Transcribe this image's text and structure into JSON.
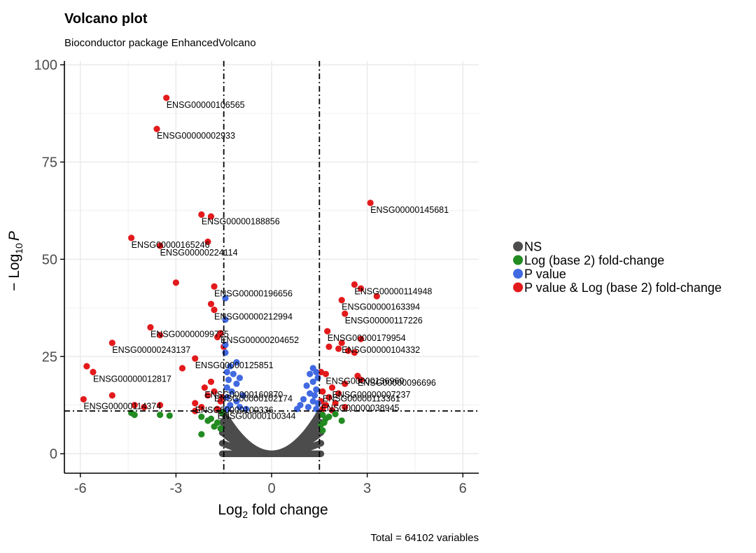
{
  "chart_data": {
    "type": "scatter",
    "title": "Volcano plot",
    "subtitle": "Bioconductor package EnhancedVolcano",
    "xlabel": {
      "base": "Log",
      "sub": "2",
      "rest": " fold change"
    },
    "ylabel": {
      "prefix": "− Log",
      "sub": "10",
      "var": "P"
    },
    "xlim": [
      -6.5,
      6.5
    ],
    "ylim": [
      -5,
      101
    ],
    "x_ticks": [
      -6,
      -3,
      0,
      3,
      6
    ],
    "y_ticks": [
      0,
      25,
      50,
      75,
      100
    ],
    "grid": true,
    "legend_position": "right",
    "fc_cutoff": 1.5,
    "p_cutoff_y": 11,
    "caption": "Total = 64102 variables",
    "colors": {
      "NS": "#4d4d4d",
      "FC": "#228b22",
      "P": "#4169e1",
      "FC_P": "#e31a1c",
      "grid": "#ebebeb",
      "axis": "#000000"
    },
    "legend": [
      {
        "key": "NS",
        "label": "NS"
      },
      {
        "key": "FC",
        "label": "Log (base 2) fold-change"
      },
      {
        "key": "P",
        "label": "P value"
      },
      {
        "key": "FC_P",
        "label": "P value & Log (base 2) fold-change"
      }
    ],
    "series": [
      {
        "key": "FC_P",
        "points": [
          {
            "x": -3.3,
            "y": 91.5
          },
          {
            "x": -3.6,
            "y": 83.5
          },
          {
            "x": -2.2,
            "y": 61.5
          },
          {
            "x": -1.9,
            "y": 61.0
          },
          {
            "x": -4.4,
            "y": 55.5
          },
          {
            "x": -3.5,
            "y": 53.5
          },
          {
            "x": -2.0,
            "y": 54.5
          },
          {
            "x": -3.0,
            "y": 44.0
          },
          {
            "x": -1.8,
            "y": 43.0
          },
          {
            "x": -1.9,
            "y": 38.5
          },
          {
            "x": -1.8,
            "y": 37.0
          },
          {
            "x": -1.6,
            "y": 31.0
          },
          {
            "x": -3.8,
            "y": 32.5
          },
          {
            "x": -3.5,
            "y": 30.5
          },
          {
            "x": -5.0,
            "y": 28.5
          },
          {
            "x": -1.5,
            "y": 27.5
          },
          {
            "x": -1.7,
            "y": 30.0
          },
          {
            "x": -2.4,
            "y": 24.5
          },
          {
            "x": -2.8,
            "y": 22.0
          },
          {
            "x": -5.8,
            "y": 22.5
          },
          {
            "x": -5.6,
            "y": 21.0
          },
          {
            "x": -5.0,
            "y": 15.0
          },
          {
            "x": -5.9,
            "y": 14.0
          },
          {
            "x": -4.3,
            "y": 12.5
          },
          {
            "x": -4.0,
            "y": 12.0
          },
          {
            "x": -3.5,
            "y": 12.5
          },
          {
            "x": -2.1,
            "y": 17.0
          },
          {
            "x": -1.9,
            "y": 18.5
          },
          {
            "x": -1.8,
            "y": 16.0
          },
          {
            "x": -2.0,
            "y": 15.0
          },
          {
            "x": -1.6,
            "y": 13.5
          },
          {
            "x": -2.4,
            "y": 13.0
          },
          {
            "x": -2.2,
            "y": 12.0
          },
          {
            "x": -1.7,
            "y": 11.5
          },
          {
            "x": -1.55,
            "y": 14.5
          },
          {
            "x": -2.4,
            "y": 11.0
          },
          {
            "x": 3.1,
            "y": 64.5
          },
          {
            "x": 2.6,
            "y": 43.5
          },
          {
            "x": 2.8,
            "y": 42.5
          },
          {
            "x": 3.3,
            "y": 40.5
          },
          {
            "x": 2.2,
            "y": 39.5
          },
          {
            "x": 2.3,
            "y": 36.0
          },
          {
            "x": 1.75,
            "y": 31.5
          },
          {
            "x": 2.8,
            "y": 29.5
          },
          {
            "x": 2.2,
            "y": 28.5
          },
          {
            "x": 1.8,
            "y": 27.5
          },
          {
            "x": 2.1,
            "y": 27.0
          },
          {
            "x": 2.4,
            "y": 26.5
          },
          {
            "x": 2.6,
            "y": 26.0
          },
          {
            "x": 1.55,
            "y": 21.0
          },
          {
            "x": 1.7,
            "y": 20.5
          },
          {
            "x": 2.7,
            "y": 20.0
          },
          {
            "x": 2.8,
            "y": 19.0
          },
          {
            "x": 2.3,
            "y": 18.0
          },
          {
            "x": 1.9,
            "y": 17.0
          },
          {
            "x": 1.6,
            "y": 16.0
          },
          {
            "x": 2.1,
            "y": 15.5
          },
          {
            "x": 1.8,
            "y": 14.5
          },
          {
            "x": 1.55,
            "y": 13.5
          },
          {
            "x": 2.0,
            "y": 13.0
          },
          {
            "x": 1.7,
            "y": 12.5
          },
          {
            "x": 2.3,
            "y": 12.0
          },
          {
            "x": 1.6,
            "y": 11.5
          },
          {
            "x": 1.9,
            "y": 11.2
          }
        ]
      },
      {
        "key": "P",
        "points": [
          {
            "x": -1.45,
            "y": 40.0
          },
          {
            "x": -1.45,
            "y": 34.5
          },
          {
            "x": -1.45,
            "y": 28.0
          },
          {
            "x": -1.45,
            "y": 26.0
          },
          {
            "x": -1.1,
            "y": 23.5
          },
          {
            "x": -1.3,
            "y": 22.5
          },
          {
            "x": -1.4,
            "y": 21.0
          },
          {
            "x": -1.2,
            "y": 20.5
          },
          {
            "x": -1.0,
            "y": 19.5
          },
          {
            "x": -1.35,
            "y": 19.0
          },
          {
            "x": -1.1,
            "y": 18.0
          },
          {
            "x": -1.4,
            "y": 17.0
          },
          {
            "x": -1.25,
            "y": 16.0
          },
          {
            "x": -0.9,
            "y": 15.0
          },
          {
            "x": -1.4,
            "y": 14.5
          },
          {
            "x": -1.1,
            "y": 13.5
          },
          {
            "x": -1.3,
            "y": 12.5
          },
          {
            "x": -1.0,
            "y": 12.0
          },
          {
            "x": -0.8,
            "y": 11.5
          },
          {
            "x": -1.4,
            "y": 11.5
          },
          {
            "x": 1.3,
            "y": 22.0
          },
          {
            "x": 1.4,
            "y": 21.0
          },
          {
            "x": 1.2,
            "y": 20.5
          },
          {
            "x": 1.45,
            "y": 19.5
          },
          {
            "x": 1.3,
            "y": 18.5
          },
          {
            "x": 1.1,
            "y": 17.5
          },
          {
            "x": 1.4,
            "y": 16.5
          },
          {
            "x": 1.2,
            "y": 15.5
          },
          {
            "x": 1.35,
            "y": 15.0
          },
          {
            "x": 1.0,
            "y": 14.0
          },
          {
            "x": 1.3,
            "y": 13.5
          },
          {
            "x": 1.45,
            "y": 13.0
          },
          {
            "x": 0.9,
            "y": 12.5
          },
          {
            "x": 1.15,
            "y": 12.0
          },
          {
            "x": 1.4,
            "y": 11.5
          },
          {
            "x": 0.8,
            "y": 11.5
          }
        ]
      },
      {
        "key": "FC",
        "points": [
          {
            "x": -4.3,
            "y": 10.0
          },
          {
            "x": -4.4,
            "y": 10.5
          },
          {
            "x": -3.5,
            "y": 10.0
          },
          {
            "x": -3.2,
            "y": 9.8
          },
          {
            "x": -2.2,
            "y": 9.5
          },
          {
            "x": -2.0,
            "y": 8.5
          },
          {
            "x": -2.2,
            "y": 5.0
          },
          {
            "x": -1.8,
            "y": 7.0
          },
          {
            "x": -1.6,
            "y": 6.5
          },
          {
            "x": -1.9,
            "y": 9.0
          },
          {
            "x": -1.55,
            "y": 10.5
          },
          {
            "x": -1.7,
            "y": 8.0
          },
          {
            "x": 1.6,
            "y": 10.0
          },
          {
            "x": 1.7,
            "y": 9.0
          },
          {
            "x": 1.55,
            "y": 7.5
          },
          {
            "x": 1.6,
            "y": 6.0
          },
          {
            "x": 2.2,
            "y": 8.5
          },
          {
            "x": 2.0,
            "y": 10.2
          },
          {
            "x": 1.8,
            "y": 9.5
          },
          {
            "x": 1.65,
            "y": 8.0
          }
        ]
      }
    ],
    "labels": [
      {
        "text": "ENSG00000106565",
        "x": -3.3,
        "y": 91.5
      },
      {
        "text": "ENSG00000002933",
        "x": -3.6,
        "y": 83.5
      },
      {
        "text": "ENSG00000188856",
        "x": -2.2,
        "y": 61.5
      },
      {
        "text": "ENSG00000165246",
        "x": -4.4,
        "y": 55.5
      },
      {
        "text": "ENSG00000224114",
        "x": -3.5,
        "y": 53.5
      },
      {
        "text": "ENSG00000196656",
        "x": -1.8,
        "y": 43.0
      },
      {
        "text": "ENSG00000212994",
        "x": -1.8,
        "y": 37.0
      },
      {
        "text": "ENSG00000099725",
        "x": -3.8,
        "y": 32.5
      },
      {
        "text": "ENSG00000243137",
        "x": -5.0,
        "y": 28.5
      },
      {
        "text": "ENSG00000204652",
        "x": -1.6,
        "y": 31.0
      },
      {
        "text": "ENSG00000125851",
        "x": -2.4,
        "y": 24.5
      },
      {
        "text": "ENSG00000012817",
        "x": -5.6,
        "y": 21.0
      },
      {
        "text": "ENSG00000102174",
        "x": -1.8,
        "y": 16.0
      },
      {
        "text": "ENSG00000160870",
        "x": -2.1,
        "y": 17.0
      },
      {
        "text": "ENSG00000114374",
        "x": -5.9,
        "y": 14.0
      },
      {
        "text": "ENSG00000100336",
        "x": -2.4,
        "y": 13.0
      },
      {
        "text": "ENSG00000100344",
        "x": -1.7,
        "y": 11.5
      },
      {
        "text": "ENSG00000145681",
        "x": 3.1,
        "y": 64.5
      },
      {
        "text": "ENSG00000114948",
        "x": 2.6,
        "y": 43.5
      },
      {
        "text": "ENSG00000163394",
        "x": 2.2,
        "y": 39.5
      },
      {
        "text": "ENSG00000117226",
        "x": 2.3,
        "y": 36.0
      },
      {
        "text": "ENSG00000179954",
        "x": 1.75,
        "y": 31.5
      },
      {
        "text": "ENSG00000104332",
        "x": 2.2,
        "y": 28.5
      },
      {
        "text": "ENSG00000136960",
        "x": 1.7,
        "y": 20.5
      },
      {
        "text": "ENSG00000096696",
        "x": 2.7,
        "y": 20.0
      },
      {
        "text": "ENSG00000007237",
        "x": 1.9,
        "y": 17.0
      },
      {
        "text": "ENSG00000113361",
        "x": 1.6,
        "y": 16.0
      },
      {
        "text": "ENSG00000038945",
        "x": 1.55,
        "y": 13.5
      }
    ]
  }
}
